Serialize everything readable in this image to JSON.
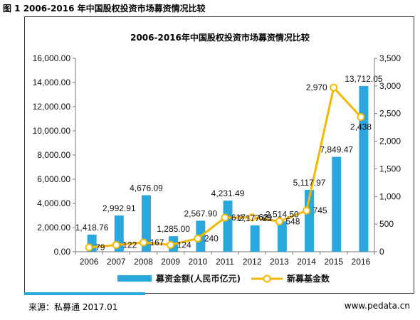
{
  "figure_title": "图 1 2006-2016 年中国股权投资市场募资情况比较",
  "source": "来源：私募通 2017.01",
  "website": "www.pedata.cn",
  "colors": {
    "bar": "#2aa7dd",
    "line": "#f5b800",
    "axis": "#777777"
  },
  "chart_data": {
    "type": "bar",
    "title": "2006-2016年中国股权投资市场募资情况比较",
    "categories": [
      "2006",
      "2007",
      "2008",
      "2009",
      "2010",
      "2011",
      "2012",
      "2013",
      "2014",
      "2015",
      "2016"
    ],
    "ylim_left": [
      0,
      16000
    ],
    "yticks_left": [
      "0.00",
      "2,000.00",
      "4,000.00",
      "6,000.00",
      "8,000.00",
      "10,000.00",
      "12,000.00",
      "14,000.00",
      "16,000.00"
    ],
    "ylim_right": [
      0,
      3500
    ],
    "yticks_right": [
      "0",
      "500",
      "1,000",
      "1,500",
      "2,000",
      "2,500",
      "3,000",
      "3,500"
    ],
    "legend_position": "bottom",
    "series": [
      {
        "name": "募资金额(人民币亿元)",
        "kind": "bar",
        "axis": "left",
        "values": [
          1418.76,
          2992.91,
          4676.09,
          1285.0,
          2567.9,
          4231.49,
          2177.85,
          2514.5,
          5117.97,
          7849.47,
          13712.05
        ],
        "labels": [
          "1,418.76",
          "2,992.91",
          "4,676.09",
          "1,285.00",
          "2,567.90",
          "4,231.49",
          "2,177.85",
          "2,514.50",
          "5,117.97",
          "7,849.47",
          "13,712.05"
        ]
      },
      {
        "name": "新募基金数",
        "kind": "line",
        "axis": "right",
        "values": [
          79,
          122,
          167,
          124,
          240,
          617,
          621,
          548,
          745,
          2970,
          2438
        ],
        "labels": [
          "79",
          "122",
          "167",
          "124",
          "240",
          "617",
          "621",
          "548",
          "745",
          "2,970",
          "2,438"
        ]
      }
    ]
  }
}
